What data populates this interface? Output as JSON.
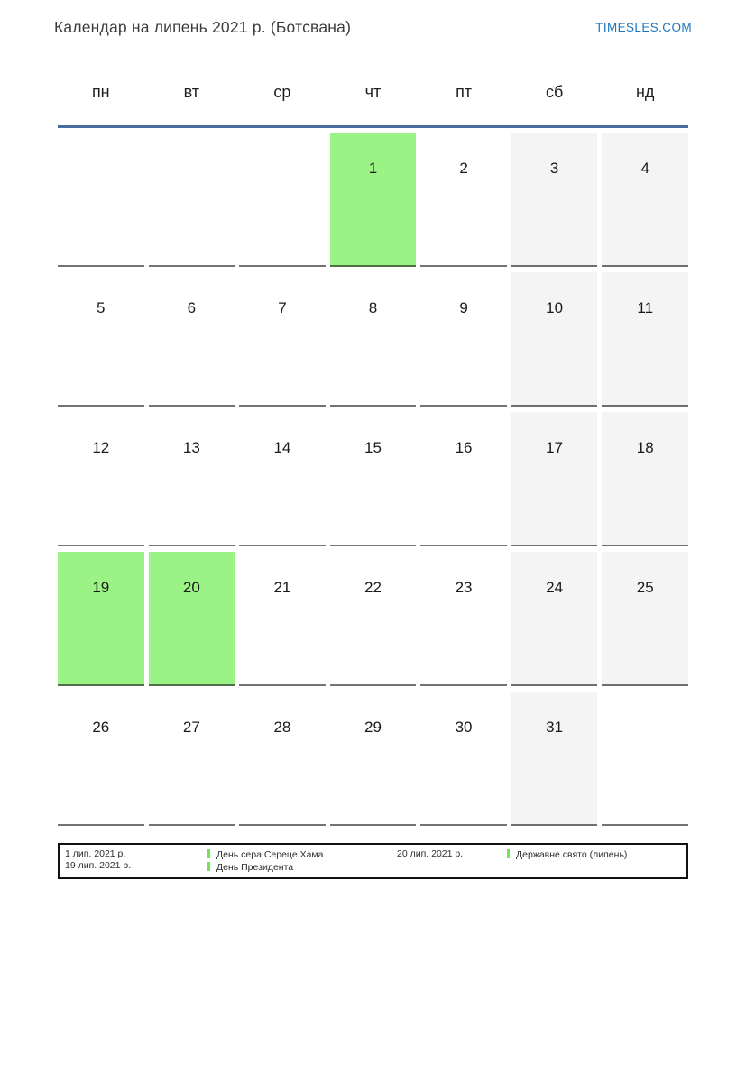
{
  "header": {
    "title": "Календар на липень 2021 р. (Ботсвана)",
    "site_link": "TIMESLES.COM"
  },
  "weekdays": [
    "пн",
    "вт",
    "ср",
    "чт",
    "пт",
    "сб",
    "нд"
  ],
  "weeks": [
    [
      {
        "d": "",
        "t": "empty"
      },
      {
        "d": "",
        "t": "empty"
      },
      {
        "d": "",
        "t": "empty"
      },
      {
        "d": "1",
        "t": "holiday"
      },
      {
        "d": "2",
        "t": "workday"
      },
      {
        "d": "3",
        "t": "weekend"
      },
      {
        "d": "4",
        "t": "weekend"
      }
    ],
    [
      {
        "d": "5",
        "t": "workday"
      },
      {
        "d": "6",
        "t": "workday"
      },
      {
        "d": "7",
        "t": "workday"
      },
      {
        "d": "8",
        "t": "workday"
      },
      {
        "d": "9",
        "t": "workday"
      },
      {
        "d": "10",
        "t": "weekend"
      },
      {
        "d": "11",
        "t": "weekend"
      }
    ],
    [
      {
        "d": "12",
        "t": "workday"
      },
      {
        "d": "13",
        "t": "workday"
      },
      {
        "d": "14",
        "t": "workday"
      },
      {
        "d": "15",
        "t": "workday"
      },
      {
        "d": "16",
        "t": "workday"
      },
      {
        "d": "17",
        "t": "weekend"
      },
      {
        "d": "18",
        "t": "weekend"
      }
    ],
    [
      {
        "d": "19",
        "t": "holiday"
      },
      {
        "d": "20",
        "t": "holiday"
      },
      {
        "d": "21",
        "t": "workday"
      },
      {
        "d": "22",
        "t": "workday"
      },
      {
        "d": "23",
        "t": "workday"
      },
      {
        "d": "24",
        "t": "weekend"
      },
      {
        "d": "25",
        "t": "weekend"
      }
    ],
    [
      {
        "d": "26",
        "t": "workday"
      },
      {
        "d": "27",
        "t": "workday"
      },
      {
        "d": "28",
        "t": "workday"
      },
      {
        "d": "29",
        "t": "workday"
      },
      {
        "d": "30",
        "t": "workday"
      },
      {
        "d": "31",
        "t": "weekend"
      },
      {
        "d": "",
        "t": "empty"
      }
    ]
  ],
  "legend": {
    "rows": [
      {
        "date": "1 лип. 2021 р.",
        "event": "День сера Сереце Хама",
        "date2": "20 лип. 2021 р.",
        "event2": "Державне свято (липень)"
      },
      {
        "date": "19 лип. 2021 р.",
        "event": "День Президента"
      }
    ]
  },
  "colors": {
    "holiday_green": "#9af384",
    "weekend_gray": "#f4f4f4",
    "header_line_blue": "#4a6d9e",
    "link_blue": "#1e73be",
    "legend_marker_green": "#74e45a"
  }
}
